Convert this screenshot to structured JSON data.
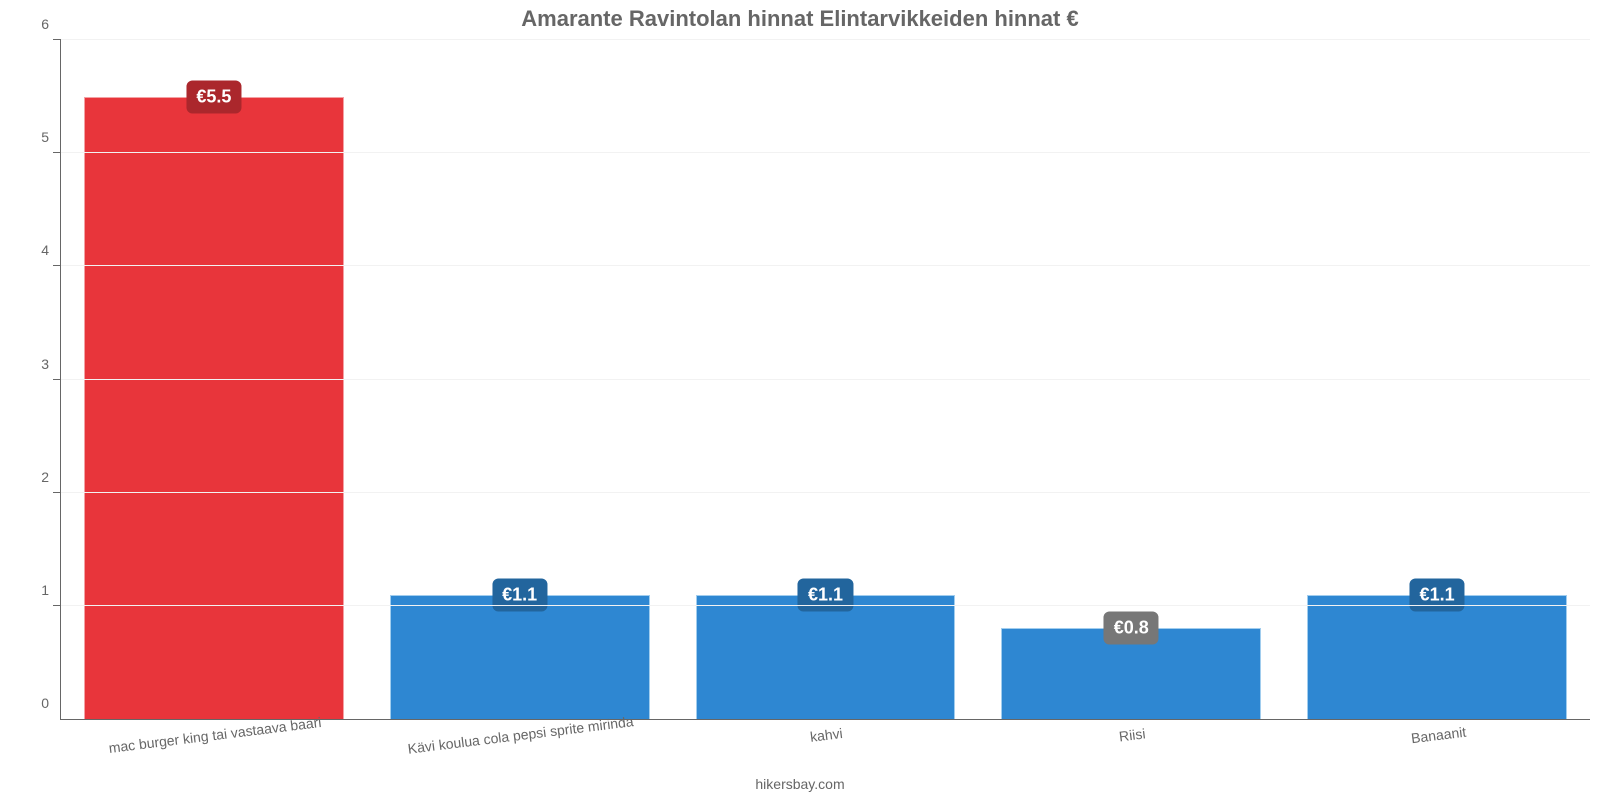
{
  "chart": {
    "type": "bar",
    "title": "Amarante Ravintolan hinnat Elintarvikkeiden hinnat €",
    "title_fontsize": 22,
    "title_color": "#666666",
    "background_color": "#ffffff",
    "axis_color": "#666666",
    "grid_color": "#f2f2f2",
    "tick_label_color": "#666666",
    "tick_label_fontsize": 14,
    "footer": "hikersbay.com",
    "footer_color": "#666666",
    "footer_fontsize": 14,
    "ylim": [
      0,
      6
    ],
    "ytick_step": 1,
    "x_label_rotation_deg": -7,
    "bar_width_ratio": 0.85,
    "value_label_fontsize": 18,
    "value_label_radius": 6,
    "categories": [
      "mac burger king tai vastaava baari",
      "Kävi koulua cola pepsi sprite mirinda",
      "kahvi",
      "Riisi",
      "Banaanit"
    ],
    "values": [
      5.5,
      1.1,
      1.1,
      0.8,
      1.1
    ],
    "value_labels": [
      "€5.5",
      "€1.1",
      "€1.1",
      "€0.8",
      "€1.1"
    ],
    "bar_colors": [
      "#e8353b",
      "#2e87d2",
      "#2e87d2",
      "#2e87d2",
      "#2e87d2"
    ],
    "bar_border_colors": [
      "#f4a1a4",
      "#a1cdee",
      "#a1cdee",
      "#a1cdee",
      "#a1cdee"
    ],
    "value_label_bg_colors": [
      "#ab272c",
      "#22659d",
      "#22659d",
      "#777777",
      "#22659d"
    ]
  }
}
